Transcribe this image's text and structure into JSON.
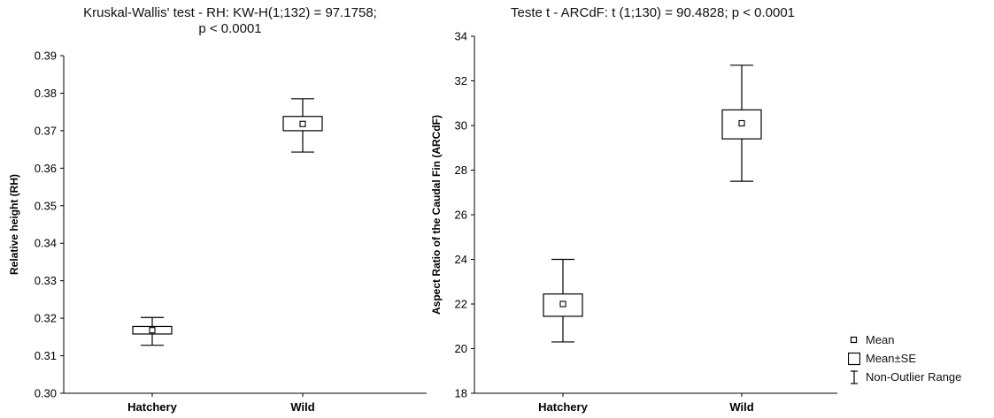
{
  "chart_data": [
    {
      "type": "box",
      "title": "Kruskal-Wallis' test - RH: KW-H(1;132) = 97.1758;",
      "title_line2": "p < 0.0001",
      "ylabel": "Relative height (RH)",
      "xlabel": "",
      "categories": [
        "Hatchery",
        "Wild"
      ],
      "ylim": [
        0.3,
        0.39
      ],
      "yticks": [
        "0.30",
        "0.31",
        "0.32",
        "0.33",
        "0.34",
        "0.35",
        "0.36",
        "0.37",
        "0.38",
        "0.39"
      ],
      "ytick_values": [
        0.3,
        0.31,
        0.32,
        0.33,
        0.34,
        0.35,
        0.36,
        0.37,
        0.38,
        0.39
      ],
      "boxes": [
        {
          "category": "Hatchery",
          "mean": 0.3168,
          "se_low": 0.3158,
          "se_high": 0.3178,
          "min": 0.3128,
          "max": 0.3202
        },
        {
          "category": "Wild",
          "mean": 0.3718,
          "se_low": 0.37,
          "se_high": 0.3738,
          "min": 0.3643,
          "max": 0.3785
        }
      ]
    },
    {
      "type": "box",
      "title": "Teste t - ARCdF: t (1;130) = 90.4828; p < 0.0001",
      "ylabel": "Aspect Ratio of the Caudal Fin (ARCdF)",
      "xlabel": "",
      "categories": [
        "Hatchery",
        "Wild"
      ],
      "ylim": [
        18,
        34
      ],
      "yticks": [
        "18",
        "20",
        "22",
        "24",
        "26",
        "28",
        "30",
        "32",
        "34"
      ],
      "ytick_values": [
        18,
        20,
        22,
        24,
        26,
        28,
        30,
        32,
        34
      ],
      "boxes": [
        {
          "category": "Hatchery",
          "mean": 22.0,
          "se_low": 21.45,
          "se_high": 22.45,
          "min": 20.3,
          "max": 24.0
        },
        {
          "category": "Wild",
          "mean": 30.1,
          "se_low": 29.4,
          "se_high": 30.7,
          "min": 27.5,
          "max": 32.7
        }
      ]
    }
  ],
  "legend": {
    "mean_label": "Mean",
    "se_label": "Mean±SE",
    "range_label": "Non-Outlier Range"
  }
}
